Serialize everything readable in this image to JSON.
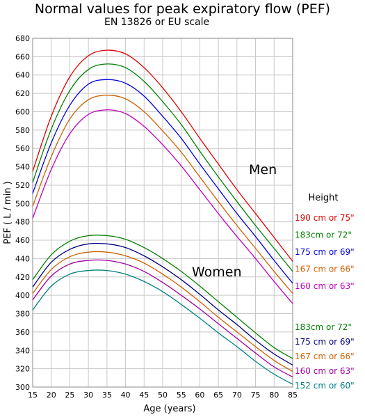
{
  "title": "Normal values for peak expiratory flow (PEF)",
  "subtitle": "EN 13826 or EU scale",
  "chart_data": {
    "type": "line",
    "title": "Normal values for peak expiratory flow (PEF)",
    "subtitle": "EN 13826 or EU scale",
    "xlabel": "Age (years)",
    "ylabel": "PEF ( L / min )",
    "xlim": [
      15,
      85
    ],
    "ylim": [
      300,
      680
    ],
    "xticks": [
      "15",
      "20",
      "25",
      "30",
      "35",
      "40",
      "45",
      "50",
      "55",
      "60",
      "65",
      "70",
      "75",
      "80",
      "85"
    ],
    "yticks": [
      "300",
      "320",
      "340",
      "360",
      "380",
      "400",
      "420",
      "440",
      "460",
      "480",
      "500",
      "520",
      "540",
      "560",
      "580",
      "600",
      "620",
      "640",
      "660",
      "680"
    ],
    "grid": true,
    "legend_title": "Height",
    "x": [
      15,
      20,
      25,
      30,
      35,
      40,
      45,
      50,
      55,
      60,
      65,
      70,
      75,
      80,
      85
    ],
    "groups": [
      {
        "label": "Men",
        "series": [
          {
            "name": "190 cm or 75\"",
            "color": "#e00000",
            "values": [
              535,
              595,
              638,
              661,
              667,
              663,
              648,
              626,
              600,
              571,
              543,
              515,
              489,
              463,
              437
            ]
          },
          {
            "name": "183cm or 72\"",
            "color": "#008000",
            "values": [
              523,
              581,
              623,
              646,
              652,
              648,
              633,
              611,
              586,
              557,
              529,
              502,
              476,
              451,
              426
            ]
          },
          {
            "name": "175 cm or 69\"",
            "color": "#0000e0",
            "values": [
              511,
              566,
              607,
              630,
              635,
              631,
              617,
              595,
              571,
              543,
              516,
              489,
              464,
              438,
              413
            ]
          },
          {
            "name": "167 cm or 66\"",
            "color": "#d06000",
            "values": [
              497,
              551,
              592,
              613,
              618,
              614,
              600,
              579,
              556,
              529,
              502,
              476,
              451,
              426,
              402
            ]
          },
          {
            "name": "160 cm or 63\"",
            "color": "#c000c0",
            "values": [
              484,
              537,
              576,
              597,
              602,
              598,
              584,
              564,
              541,
              515,
              489,
              464,
              440,
              415,
              391
            ]
          }
        ]
      },
      {
        "label": "Women",
        "series": [
          {
            "name": "183cm or 72\"",
            "color": "#008000",
            "values": [
              417,
              444,
              459,
              465,
              465,
              461,
              452,
              440,
              426,
              410,
              393,
              376,
              359,
              343,
              331
            ]
          },
          {
            "name": "175 cm or 69\"",
            "color": "#000080",
            "values": [
              409,
              436,
              450,
              456,
              456,
              452,
              443,
              431,
              417,
              401,
              384,
              368,
              351,
              336,
              324
            ]
          },
          {
            "name": "167 cm or 66\"",
            "color": "#d06000",
            "values": [
              402,
              428,
              442,
              447,
              447,
              443,
              435,
              423,
              409,
              393,
              376,
              360,
              344,
              329,
              317
            ]
          },
          {
            "name": "160 cm or 63\"",
            "color": "#a000a0",
            "values": [
              395,
              421,
              434,
              438,
              438,
              434,
              426,
              414,
              400,
              385,
              369,
              353,
              337,
              322,
              311
            ]
          },
          {
            "name": "152 cm or 60\"",
            "color": "#008080",
            "values": [
              384,
              410,
              423,
              427,
              427,
              423,
              415,
              404,
              390,
              375,
              359,
              344,
              328,
              314,
              303
            ]
          }
        ]
      }
    ]
  }
}
